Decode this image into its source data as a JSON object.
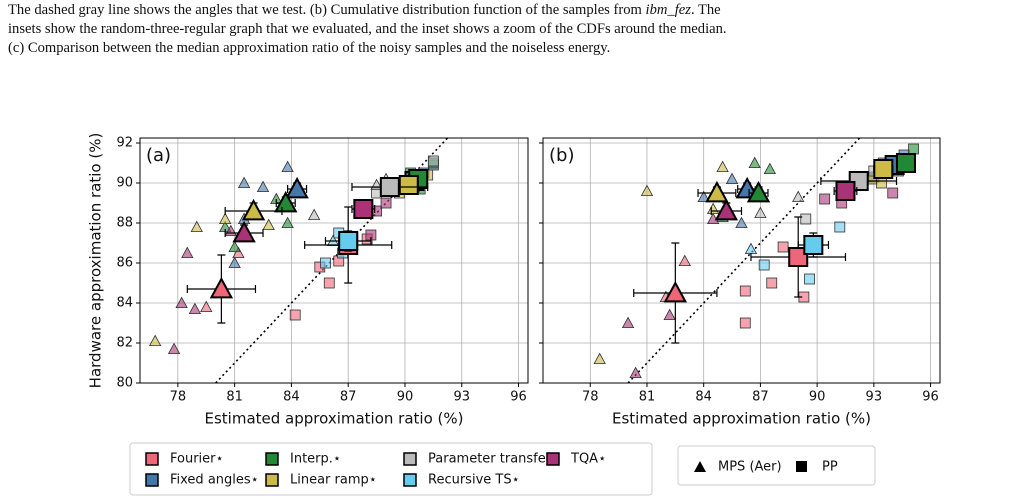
{
  "caption": {
    "line1_start": "The dashed gray line shows the angles that we test. (b) Cumulative distribution function of the samples from ",
    "line1_italic": "ibm_fez",
    "line1_end": ". The",
    "line2": "insets show the random-three-regular graph that we evaluated, and the inset shows a zoom of the CDFs around the median.",
    "line3": "(c) Comparison between the median approximation ratio of the noisy samples and the noiseless energy."
  },
  "marker_legend": [
    "MPS (Aer)",
    "PP"
  ],
  "chart_data": [
    {
      "type": "scatter",
      "panel_label": "(a)",
      "x_label": "Estimated approximation ratio (%)",
      "y_label": "Hardware approximation ratio (%)",
      "xlim": [
        76.0,
        96.5
      ],
      "ylim": [
        80,
        92.25
      ],
      "xticks": [
        78,
        81,
        84,
        87,
        90,
        93,
        96
      ],
      "yticks": [
        80,
        82,
        84,
        86,
        88,
        90,
        92
      ],
      "grid": true,
      "show_yticklabels": true,
      "series": [
        {
          "name": "Fourier⋆",
          "color": "#ee6677",
          "mps": {
            "x": 80.3,
            "y": 84.7,
            "xerr": 1.8,
            "yerr": 1.7
          },
          "pp": {
            "x": 87.0,
            "y": 86.9,
            "xerr": 2.3,
            "yerr": 1.9
          },
          "mps_points": {
            "x": [
              79.5,
              81.2
            ],
            "y": [
              83.8,
              86.5
            ]
          },
          "pp_points": {
            "x": [
              85.5,
              86.0,
              84.2,
              88.0,
              86.5
            ],
            "y": [
              85.8,
              85.0,
              83.4,
              87.2,
              86.1
            ]
          }
        },
        {
          "name": "Fixed angles⋆",
          "color": "#4477aa",
          "mps": {
            "x": 84.3,
            "y": 89.7,
            "xerr": 0.5,
            "yerr": 0.3
          },
          "pp": {
            "x": 90.5,
            "y": 90.1,
            "xerr": 0.5,
            "yerr": 0.3
          },
          "mps_points": {
            "x": [
              81.5,
              82.5,
              83.8,
              81.5,
              81.0
            ],
            "y": [
              90.0,
              89.8,
              90.8,
              88.2,
              86.0
            ]
          },
          "pp_points": {
            "x": [
              91.0,
              90.5,
              91.5
            ],
            "y": [
              90.5,
              89.8,
              90.9
            ]
          }
        },
        {
          "name": "Interp.⋆",
          "color": "#228833",
          "mps": {
            "x": 83.7,
            "y": 89.0,
            "xerr": 0.5,
            "yerr": 0.3
          },
          "pp": {
            "x": 90.7,
            "y": 90.2,
            "xerr": 0.4,
            "yerr": 0.3
          },
          "mps_points": {
            "x": [
              80.5,
              81.0,
              83.8,
              83.2
            ],
            "y": [
              87.8,
              86.8,
              88.0,
              89.2
            ]
          },
          "pp_points": {
            "x": [
              91.5,
              90.3,
              90.8
            ],
            "y": [
              91.0,
              90.5,
              89.7
            ]
          }
        },
        {
          "name": "Linear ramp⋆",
          "color": "#ccbb44",
          "mps": {
            "x": 82.0,
            "y": 88.6,
            "xerr": 1.5,
            "yerr": 0.4
          },
          "pp": {
            "x": 90.2,
            "y": 89.9,
            "xerr": 0.5,
            "yerr": 0.3
          },
          "mps_points": {
            "x": [
              79.0,
              80.5,
              82.8,
              76.8
            ],
            "y": [
              87.8,
              88.2,
              87.9,
              82.1
            ]
          },
          "pp_points": {
            "x": [
              89.7,
              90.1,
              91.2
            ],
            "y": [
              89.5,
              89.8,
              90.4
            ]
          }
        },
        {
          "name": "Parameter transfer",
          "color": "#bbbbbb",
          "mps": null,
          "pp": {
            "x": 89.2,
            "y": 89.8,
            "xerr": 2.0,
            "yerr": 0.3
          },
          "mps_points": {
            "x": [
              85.2,
              88.5,
              89.0
            ],
            "y": [
              88.4,
              89.9,
              90.2
            ]
          },
          "pp_points": {
            "x": [
              91.5,
              88.5
            ],
            "y": [
              91.1,
              89.5
            ]
          }
        },
        {
          "name": "Recursive TS⋆",
          "color": "#66ccee",
          "mps": null,
          "pp": {
            "x": 87.0,
            "y": 87.1,
            "xerr": 1.2,
            "yerr": 0.5
          },
          "mps_points": {
            "x": [
              86.2
            ],
            "y": [
              87.1
            ]
          },
          "pp_points": {
            "x": [
              86.5,
              85.8,
              86.7
            ],
            "y": [
              87.5,
              86.0,
              86.5
            ]
          }
        },
        {
          "name": "TQA⋆",
          "color": "#aa3377",
          "mps": {
            "x": 81.5,
            "y": 87.5,
            "xerr": 1.0,
            "yerr": 0.4
          },
          "pp": {
            "x": 87.8,
            "y": 88.7,
            "xerr": 0.6,
            "yerr": 0.4
          },
          "mps_points": {
            "x": [
              78.5,
              80.8,
              77.8,
              78.2,
              78.9
            ],
            "y": [
              86.5,
              87.6,
              81.7,
              84.0,
              83.7
            ]
          },
          "pp_points": {
            "x": [
              88.2,
              88.5,
              89.0
            ],
            "y": [
              87.4,
              88.6,
              89.0
            ]
          }
        }
      ]
    },
    {
      "type": "scatter",
      "panel_label": "(b)",
      "x_label": "Estimated approximation ratio (%)",
      "xlim": [
        75.5,
        96.5
      ],
      "ylim": [
        80,
        92.25
      ],
      "xticks": [
        78,
        81,
        84,
        87,
        90,
        93,
        96
      ],
      "yticks": [
        80,
        82,
        84,
        86,
        88,
        90,
        92
      ],
      "grid": true,
      "show_yticklabels": false,
      "series": [
        {
          "name": "Fourier⋆",
          "color": "#ee6677",
          "mps": {
            "x": 82.5,
            "y": 84.5,
            "xerr": 2.2,
            "yerr": 2.5
          },
          "pp": {
            "x": 89.0,
            "y": 86.3,
            "xerr": 2.5,
            "yerr": 2.0
          },
          "mps_points": {
            "x": [
              82.0,
              83.0
            ],
            "y": [
              84.3,
              86.1
            ]
          },
          "pp_points": {
            "x": [
              86.2,
              89.3,
              88.2,
              86.2,
              87.6
            ],
            "y": [
              84.6,
              84.3,
              86.8,
              83.0,
              85.0
            ]
          }
        },
        {
          "name": "Fixed angles⋆",
          "color": "#4477aa",
          "mps": {
            "x": 86.3,
            "y": 89.7,
            "xerr": 0.5,
            "yerr": 0.3
          },
          "pp": {
            "x": 94.1,
            "y": 90.9,
            "xerr": 0.5,
            "yerr": 0.3
          },
          "mps_points": {
            "x": [
              84.0,
              85.5,
              86.0
            ],
            "y": [
              89.3,
              90.2,
              88.0
            ]
          },
          "pp_points": {
            "x": [
              93.5,
              94.6,
              93.0
            ],
            "y": [
              91.0,
              91.4,
              90.3
            ]
          }
        },
        {
          "name": "Interp.⋆",
          "color": "#228833",
          "mps": {
            "x": 86.9,
            "y": 89.5,
            "xerr": 0.5,
            "yerr": 0.3
          },
          "pp": {
            "x": 94.7,
            "y": 91.0,
            "xerr": 0.4,
            "yerr": 0.3
          },
          "mps_points": {
            "x": [
              85.0,
              86.7,
              87.5
            ],
            "y": [
              88.3,
              91.0,
              90.7
            ]
          },
          "pp_points": {
            "x": [
              95.1,
              94.3
            ],
            "y": [
              91.7,
              90.6
            ]
          }
        },
        {
          "name": "Linear ramp⋆",
          "color": "#ccbb44",
          "mps": {
            "x": 84.7,
            "y": 89.5,
            "xerr": 1.0,
            "yerr": 0.3
          },
          "pp": {
            "x": 93.5,
            "y": 90.7,
            "xerr": 0.5,
            "yerr": 0.3
          },
          "mps_points": {
            "x": [
              81.0,
              84.5,
              85.0,
              78.5
            ],
            "y": [
              89.6,
              88.7,
              90.8,
              81.2
            ]
          },
          "pp_points": {
            "x": [
              92.9,
              93.4
            ],
            "y": [
              90.2,
              90.0
            ]
          }
        },
        {
          "name": "Parameter transfer",
          "color": "#bbbbbb",
          "mps": null,
          "pp": {
            "x": 92.2,
            "y": 90.1,
            "xerr": 2.0,
            "yerr": 0.3
          },
          "mps_points": {
            "x": [
              87.0,
              89.0
            ],
            "y": [
              88.5,
              89.3
            ]
          },
          "pp_points": {
            "x": [
              89.4,
              93.0
            ],
            "y": [
              88.2,
              90.6
            ]
          }
        },
        {
          "name": "Recursive TS⋆",
          "color": "#66ccee",
          "mps": null,
          "pp": {
            "x": 89.8,
            "y": 86.9,
            "xerr": 0.8,
            "yerr": 0.6
          },
          "mps_points": {
            "x": [
              86.5
            ],
            "y": [
              86.7
            ]
          },
          "pp_points": {
            "x": [
              87.2,
              91.2,
              89.6
            ],
            "y": [
              85.9,
              87.8,
              85.2
            ]
          }
        },
        {
          "name": "TQA⋆",
          "color": "#aa3377",
          "mps": {
            "x": 85.2,
            "y": 88.6,
            "xerr": 0.8,
            "yerr": 0.4
          },
          "pp": {
            "x": 91.5,
            "y": 89.6,
            "xerr": 0.6,
            "yerr": 0.4
          },
          "mps_points": {
            "x": [
              80.0,
              82.2,
              84.5,
              80.4
            ],
            "y": [
              83.0,
              83.4,
              88.2,
              80.5
            ]
          },
          "pp_points": {
            "x": [
              94.0,
              91.3,
              90.4
            ],
            "y": [
              89.5,
              89.0,
              89.2
            ]
          }
        }
      ]
    }
  ]
}
